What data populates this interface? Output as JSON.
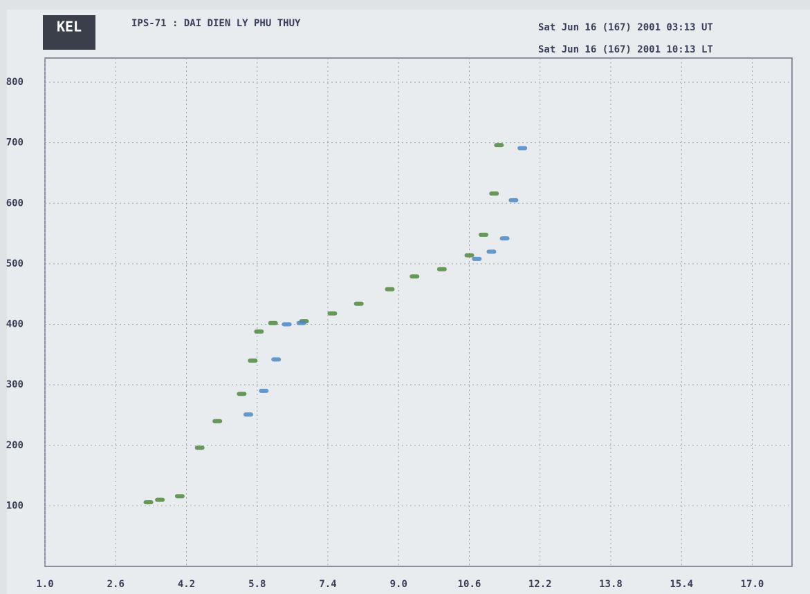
{
  "chart_data": {
    "type": "scatter",
    "logo": "KEL",
    "title": "IPS-71 : DAI DIEN LY PHU THUY",
    "time_ut": "Sat Jun 16 (167) 2001 03:13 UT",
    "time_lt": "Sat Jun 16 (167) 2001 10:13 LT",
    "xlim": [
      1.0,
      17.9
    ],
    "ylim": [
      0,
      840
    ],
    "xticks": [
      {
        "value": 1.0,
        "label": "1.0"
      },
      2.6,
      4.2,
      5.8,
      7.4,
      {
        "value": 9.0,
        "label": "9.0"
      },
      10.6,
      12.2,
      13.8,
      15.4,
      {
        "value": 17.0,
        "label": "17.0"
      }
    ],
    "yticks": [
      100,
      200,
      300,
      400,
      500,
      600,
      700,
      800
    ],
    "grid": true,
    "series": [
      {
        "color": "#4f8a3c",
        "x": [
          3.34,
          3.6,
          4.05,
          4.5,
          4.9,
          5.45,
          5.7,
          5.84,
          6.16,
          6.86,
          7.5,
          8.1,
          8.8,
          9.36,
          9.98,
          10.6,
          10.92,
          11.16,
          11.27
        ],
        "values": [
          106,
          110,
          116,
          196,
          240,
          285,
          340,
          388,
          402,
          405,
          418,
          434,
          458,
          479,
          491,
          514,
          548,
          616,
          696
        ]
      },
      {
        "color": "#4a8ac8",
        "x": [
          5.6,
          5.95,
          6.23,
          6.47,
          6.8,
          10.77,
          11.1,
          11.4,
          11.6,
          11.8
        ],
        "values": [
          251,
          290,
          342,
          400,
          402,
          508,
          520,
          542,
          605,
          691
        ]
      }
    ]
  }
}
